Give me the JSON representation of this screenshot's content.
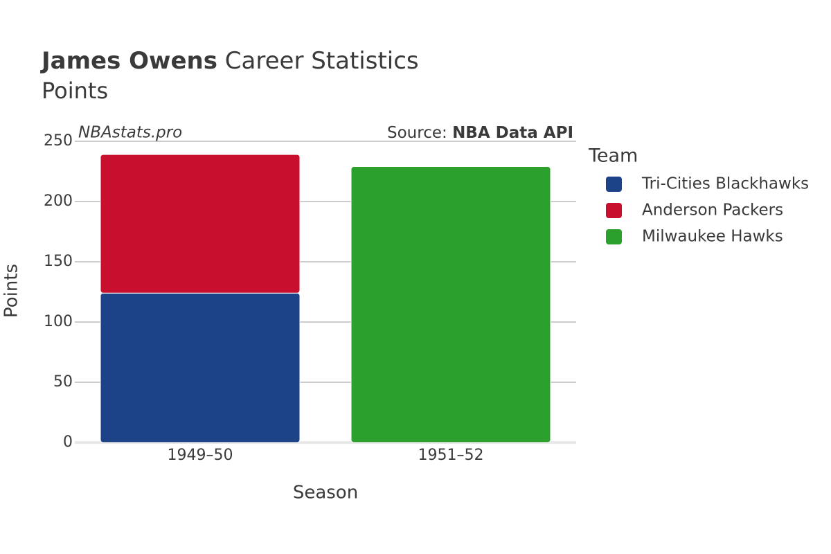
{
  "chart_data": {
    "type": "stacked-bar",
    "title": "James Owens",
    "title_suffix": "Career Statistics",
    "subtitle": "Points",
    "watermark": "NBAstats.pro",
    "source_prefix": "Source:",
    "source": "NBA Data API",
    "x_label": "Season",
    "y_label": "Points",
    "categories": [
      "1949–50",
      "1951–52"
    ],
    "series": [
      {
        "name": "Tri-Cities Blackhawks",
        "color": "#1c4288",
        "values": [
          124,
          null
        ]
      },
      {
        "name": "Anderson Packers",
        "color": "#c8102e",
        "values": [
          115,
          null
        ]
      },
      {
        "name": "Milwaukee Hawks",
        "color": "#2ca02c",
        "values": [
          null,
          229
        ]
      }
    ],
    "legend_title": "Team",
    "ylim": [
      0,
      250
    ],
    "yticks": [
      0,
      50,
      100,
      150,
      200,
      250
    ],
    "grid": true
  }
}
